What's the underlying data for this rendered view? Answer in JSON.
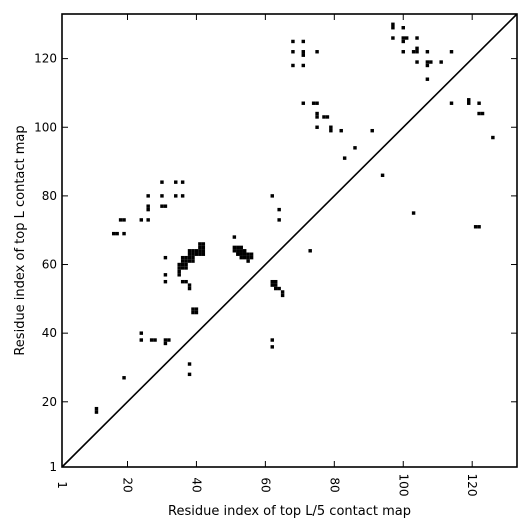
{
  "chart_data": {
    "type": "scatter",
    "title": "",
    "xlabel": "Residue index of top L/5 contact map",
    "ylabel": "Residue index of top L contact map",
    "xlim": [
      1,
      133
    ],
    "ylim": [
      1,
      133
    ],
    "x_ticks": [
      1,
      20,
      40,
      60,
      80,
      100,
      120
    ],
    "y_ticks": [
      1,
      20,
      40,
      60,
      80,
      100,
      120
    ],
    "x_tick_labels": [
      "1",
      "20",
      "40",
      "60",
      "80",
      "100",
      "120"
    ],
    "y_tick_labels": [
      "1",
      "20",
      "40",
      "60",
      "80",
      "100",
      "120"
    ],
    "grid": false,
    "diagonal_line": true,
    "mark_color": "#000000",
    "series": [
      {
        "points": [
          [
            11,
            17
          ],
          [
            11,
            18
          ],
          [
            16,
            69
          ],
          [
            17,
            69
          ],
          [
            18,
            73
          ],
          [
            19,
            73
          ],
          [
            19,
            69
          ],
          [
            19,
            27
          ],
          [
            24,
            73
          ],
          [
            24,
            40
          ],
          [
            24,
            38
          ],
          [
            26,
            80
          ],
          [
            26,
            77
          ],
          [
            26,
            76
          ],
          [
            26,
            73
          ],
          [
            27,
            38
          ],
          [
            28,
            38
          ],
          [
            30,
            84
          ],
          [
            30,
            80
          ],
          [
            30,
            77
          ],
          [
            31,
            77
          ],
          [
            31,
            62
          ],
          [
            31,
            57
          ],
          [
            31,
            55
          ],
          [
            31,
            38
          ],
          [
            31,
            37
          ],
          [
            32,
            38
          ],
          [
            34,
            84
          ],
          [
            34,
            80
          ],
          [
            35,
            60
          ],
          [
            35,
            59
          ],
          [
            35,
            58
          ],
          [
            35,
            57
          ],
          [
            36,
            84
          ],
          [
            36,
            80
          ],
          [
            36,
            62
          ],
          [
            36,
            61
          ],
          [
            36,
            60
          ],
          [
            36,
            59
          ],
          [
            36,
            55
          ],
          [
            37,
            62
          ],
          [
            37,
            61
          ],
          [
            37,
            60
          ],
          [
            37,
            59
          ],
          [
            37,
            55
          ],
          [
            38,
            64
          ],
          [
            38,
            63
          ],
          [
            38,
            62
          ],
          [
            38,
            61
          ],
          [
            38,
            54
          ],
          [
            38,
            53
          ],
          [
            38,
            31
          ],
          [
            38,
            28
          ],
          [
            39,
            64
          ],
          [
            39,
            63
          ],
          [
            39,
            62
          ],
          [
            39,
            61
          ],
          [
            39,
            47
          ],
          [
            39,
            46
          ],
          [
            40,
            64
          ],
          [
            40,
            63
          ],
          [
            40,
            47
          ],
          [
            40,
            46
          ],
          [
            41,
            66
          ],
          [
            41,
            65
          ],
          [
            41,
            64
          ],
          [
            41,
            63
          ],
          [
            42,
            66
          ],
          [
            42,
            65
          ],
          [
            42,
            64
          ],
          [
            42,
            63
          ],
          [
            51,
            68
          ],
          [
            51,
            65
          ],
          [
            51,
            64
          ],
          [
            52,
            65
          ],
          [
            52,
            64
          ],
          [
            52,
            63
          ],
          [
            53,
            65
          ],
          [
            53,
            64
          ],
          [
            53,
            63
          ],
          [
            53,
            62
          ],
          [
            54,
            64
          ],
          [
            54,
            63
          ],
          [
            54,
            62
          ],
          [
            55,
            63
          ],
          [
            55,
            62
          ],
          [
            55,
            61
          ],
          [
            56,
            63
          ],
          [
            56,
            62
          ],
          [
            62,
            80
          ],
          [
            62,
            55
          ],
          [
            62,
            54
          ],
          [
            62,
            38
          ],
          [
            62,
            36
          ],
          [
            63,
            55
          ],
          [
            63,
            54
          ],
          [
            63,
            53
          ],
          [
            64,
            76
          ],
          [
            64,
            73
          ],
          [
            64,
            53
          ],
          [
            65,
            52
          ],
          [
            65,
            51
          ],
          [
            68,
            125
          ],
          [
            68,
            122
          ],
          [
            68,
            118
          ],
          [
            71,
            125
          ],
          [
            71,
            122
          ],
          [
            71,
            121
          ],
          [
            71,
            118
          ],
          [
            71,
            107
          ],
          [
            73,
            64
          ],
          [
            74,
            107
          ],
          [
            75,
            122
          ],
          [
            75,
            107
          ],
          [
            75,
            104
          ],
          [
            75,
            103
          ],
          [
            75,
            100
          ],
          [
            77,
            103
          ],
          [
            78,
            103
          ],
          [
            79,
            100
          ],
          [
            79,
            99
          ],
          [
            82,
            99
          ],
          [
            83,
            91
          ],
          [
            86,
            94
          ],
          [
            91,
            99
          ],
          [
            94,
            86
          ],
          [
            97,
            130
          ],
          [
            97,
            129
          ],
          [
            97,
            126
          ],
          [
            100,
            129
          ],
          [
            100,
            126
          ],
          [
            100,
            125
          ],
          [
            100,
            122
          ],
          [
            101,
            126
          ],
          [
            103,
            122
          ],
          [
            103,
            75
          ],
          [
            104,
            126
          ],
          [
            104,
            123
          ],
          [
            104,
            122
          ],
          [
            104,
            119
          ],
          [
            107,
            122
          ],
          [
            107,
            119
          ],
          [
            107,
            118
          ],
          [
            107,
            114
          ],
          [
            108,
            119
          ],
          [
            111,
            119
          ],
          [
            114,
            122
          ],
          [
            114,
            107
          ],
          [
            119,
            108
          ],
          [
            119,
            107
          ],
          [
            121,
            71
          ],
          [
            122,
            107
          ],
          [
            122,
            104
          ],
          [
            122,
            71
          ],
          [
            123,
            104
          ],
          [
            126,
            97
          ]
        ]
      }
    ]
  }
}
